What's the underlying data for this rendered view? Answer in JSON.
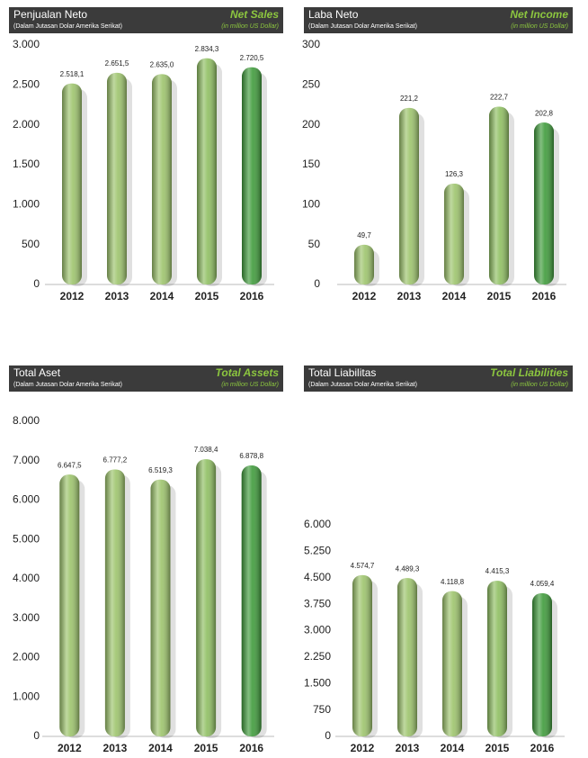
{
  "chart_data": [
    {
      "type": "bar",
      "title": "Penjualan Neto",
      "subtitle": "(Dalam Jutasan Dolar Amerika Serikat)",
      "title_en": "Net Sales",
      "subtitle_en": "(in million US Dollar)",
      "categories": [
        "2012",
        "2013",
        "2014",
        "2015",
        "2016"
      ],
      "values": [
        2518.1,
        2651.5,
        2635.0,
        2834.3,
        2720.5
      ],
      "value_labels": [
        "2.518,1",
        "2.651,5",
        "2.635,0",
        "2.834,3",
        "2.720,5"
      ],
      "colors": [
        "#9dc46c",
        "#9dc46c",
        "#9dc46c",
        "#8fbf62",
        "#3f9b3b"
      ],
      "ylim": [
        0,
        3000
      ],
      "yticks": [
        0,
        {
          "value": 500,
          "label": "500"
        },
        {
          "value": 1000,
          "label": "1.000"
        },
        {
          "value": 1500,
          "label": "1.500"
        },
        {
          "value": 2000,
          "label": "2.000"
        },
        {
          "value": 2500,
          "label": "2.500"
        },
        {
          "value": 3000,
          "label": "3.000"
        }
      ]
    },
    {
      "type": "bar",
      "title": "Laba Neto",
      "subtitle": "(Dalam Jutasan Dolar Amerika Serikat)",
      "title_en": "Net Income",
      "subtitle_en": "(in million US Dollar)",
      "categories": [
        "2012",
        "2013",
        "2014",
        "2015",
        "2016"
      ],
      "values": [
        49.7,
        221.2,
        126.3,
        222.7,
        202.8
      ],
      "value_labels": [
        "49,7",
        "221,2",
        "126,3",
        "222,7",
        "202,8"
      ],
      "colors": [
        "#9dc46c",
        "#9dc46c",
        "#9dc46c",
        "#8fbf62",
        "#3f9b3b"
      ],
      "ylim": [
        0,
        300
      ],
      "yticks": [
        0,
        50,
        100,
        150,
        200,
        250,
        300
      ]
    },
    {
      "type": "bar",
      "title": "Total Aset",
      "subtitle": "(Dalam Jutasan Dolar Amerika Serikat)",
      "title_en": "Total Assets",
      "subtitle_en": "(in million US Dollar)",
      "categories": [
        "2012",
        "2013",
        "2014",
        "2015",
        "2016"
      ],
      "values": [
        6647.5,
        6777.2,
        6519.3,
        7038.4,
        6878.8
      ],
      "value_labels": [
        "6.647,5",
        "6.777,2",
        "6.519,3",
        "7.038,4",
        "6.878,8"
      ],
      "colors": [
        "#9dc46c",
        "#9dc46c",
        "#9dc46c",
        "#8fbf62",
        "#3f9b3b"
      ],
      "ylim": [
        0,
        8000
      ],
      "yticks": [
        0,
        {
          "value": 1000,
          "label": "1.000"
        },
        {
          "value": 2000,
          "label": "2.000"
        },
        {
          "value": 3000,
          "label": "3.000"
        },
        {
          "value": 4000,
          "label": "4.000"
        },
        {
          "value": 5000,
          "label": "5.000"
        },
        {
          "value": 6000,
          "label": "6.000"
        },
        {
          "value": 7000,
          "label": "7.000"
        },
        {
          "value": 8000,
          "label": "8.000"
        }
      ]
    },
    {
      "type": "bar",
      "title": "Total Liabilitas",
      "subtitle": "(Dalam Jutasan Dolar Amerika Serikat)",
      "title_en": "Total Liabilities",
      "subtitle_en": "(in million US Dollar)",
      "categories": [
        "2012",
        "2013",
        "2014",
        "2015",
        "2016"
      ],
      "values": [
        4574.7,
        4489.3,
        4118.8,
        4415.3,
        4059.4
      ],
      "value_labels": [
        "4.574,7",
        "4.489,3",
        "4.118,8",
        "4.415,3",
        "4.059,4"
      ],
      "colors": [
        "#9dc46c",
        "#9dc46c",
        "#9dc46c",
        "#8fbf62",
        "#3f9b3b"
      ],
      "ylim": [
        0,
        6000
      ],
      "yticks": [
        0,
        750,
        {
          "value": 1500,
          "label": "1.500"
        },
        {
          "value": 2250,
          "label": "2.250"
        },
        {
          "value": 3000,
          "label": "3.000"
        },
        {
          "value": 3750,
          "label": "3.750"
        },
        {
          "value": 4500,
          "label": "4.500"
        },
        {
          "value": 5250,
          "label": "5.250"
        },
        {
          "value": 6000,
          "label": "6.000"
        }
      ]
    }
  ]
}
